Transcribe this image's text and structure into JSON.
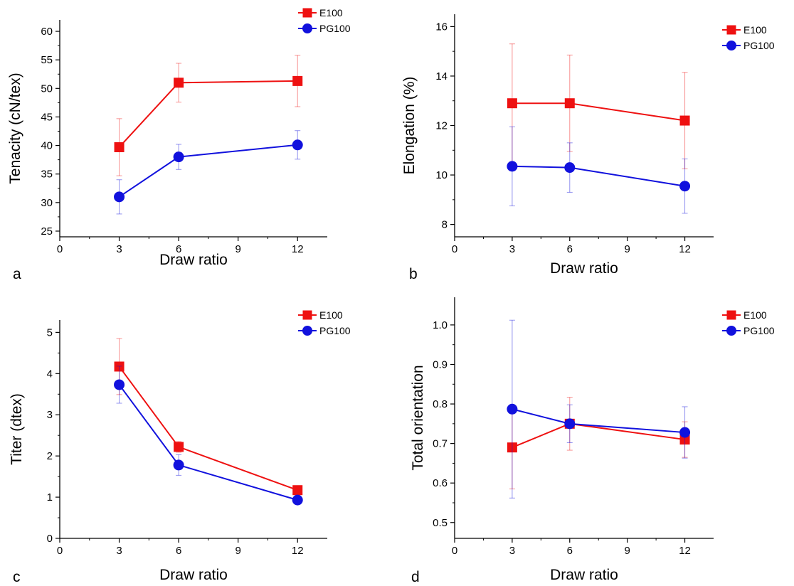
{
  "colors": {
    "E100": "#ee1111",
    "PG100": "#1111dd",
    "axis": "#000000"
  },
  "chart_data": [
    {
      "panel_label": "a",
      "type": "line",
      "xlabel": "Draw ratio",
      "ylabel": "Tenacity (cN/tex)",
      "xlim": [
        0,
        13.5
      ],
      "ylim": [
        24,
        62
      ],
      "xticks": [
        0,
        3,
        6,
        9,
        12
      ],
      "yticks": [
        25,
        30,
        35,
        40,
        45,
        50,
        55,
        60
      ],
      "ytick_labels": [
        "25",
        "30",
        "35",
        "40",
        "45",
        "50",
        "55",
        "60"
      ],
      "legend": "top-right",
      "x": [
        3,
        6,
        12
      ],
      "series": [
        {
          "name": "E100",
          "marker": "square",
          "color": "#ee1111",
          "values": [
            39.7,
            51.0,
            51.3
          ],
          "err": [
            5.0,
            3.4,
            4.5
          ]
        },
        {
          "name": "PG100",
          "marker": "circle",
          "color": "#1111dd",
          "values": [
            31.0,
            38.0,
            40.1
          ],
          "err": [
            3.0,
            2.2,
            2.5
          ]
        }
      ]
    },
    {
      "panel_label": "b",
      "type": "line",
      "xlabel": "Draw ratio",
      "ylabel": "Elongation (%)",
      "xlim": [
        0,
        13.5
      ],
      "ylim": [
        7.5,
        16.5
      ],
      "xticks": [
        0,
        3,
        6,
        9,
        12
      ],
      "yticks": [
        8,
        10,
        12,
        14,
        16
      ],
      "ytick_labels": [
        "8",
        "10",
        "12",
        "14",
        "16"
      ],
      "legend": "top-right",
      "x": [
        3,
        6,
        12
      ],
      "series": [
        {
          "name": "E100",
          "marker": "square",
          "color": "#ee1111",
          "values": [
            12.9,
            12.9,
            12.2
          ],
          "err": [
            2.4,
            1.95,
            1.95
          ]
        },
        {
          "name": "PG100",
          "marker": "circle",
          "color": "#1111dd",
          "values": [
            10.35,
            10.3,
            9.55
          ],
          "err": [
            1.6,
            1.0,
            1.1
          ]
        }
      ]
    },
    {
      "panel_label": "c",
      "type": "line",
      "xlabel": "Draw ratio",
      "ylabel": "Titer (dtex)",
      "xlim": [
        0,
        13.5
      ],
      "ylim": [
        0,
        5.3
      ],
      "xticks": [
        0,
        3,
        6,
        9,
        12
      ],
      "yticks": [
        0,
        1,
        2,
        3,
        4,
        5
      ],
      "ytick_labels": [
        "0",
        "1",
        "2",
        "3",
        "4",
        "5"
      ],
      "legend": "top-right",
      "x": [
        3,
        6,
        12
      ],
      "series": [
        {
          "name": "E100",
          "marker": "square",
          "color": "#ee1111",
          "values": [
            4.17,
            2.22,
            1.17
          ],
          "err": [
            0.68,
            0.13,
            0.05
          ]
        },
        {
          "name": "PG100",
          "marker": "circle",
          "color": "#1111dd",
          "values": [
            3.73,
            1.78,
            0.93
          ],
          "err": [
            0.45,
            0.25,
            0.05
          ]
        }
      ]
    },
    {
      "panel_label": "d",
      "type": "line",
      "xlabel": "Draw ratio",
      "ylabel": "Total orientation",
      "xlim": [
        0,
        13.5
      ],
      "ylim": [
        0.46,
        1.07
      ],
      "xticks": [
        0,
        3,
        6,
        9,
        12
      ],
      "yticks": [
        0.5,
        0.6,
        0.7,
        0.8,
        0.9,
        1.0
      ],
      "ytick_labels": [
        "0.5",
        "0.6",
        "0.7",
        "0.8",
        "0.9",
        "1.0"
      ],
      "legend": "top-right",
      "x": [
        3,
        6,
        12
      ],
      "series": [
        {
          "name": "E100",
          "marker": "square",
          "color": "#ee1111",
          "values": [
            0.69,
            0.75,
            0.71
          ],
          "err": [
            0.105,
            0.067,
            0.045
          ]
        },
        {
          "name": "PG100",
          "marker": "circle",
          "color": "#1111dd",
          "values": [
            0.787,
            0.75,
            0.728
          ],
          "err": [
            0.225,
            0.048,
            0.065
          ]
        }
      ]
    }
  ]
}
